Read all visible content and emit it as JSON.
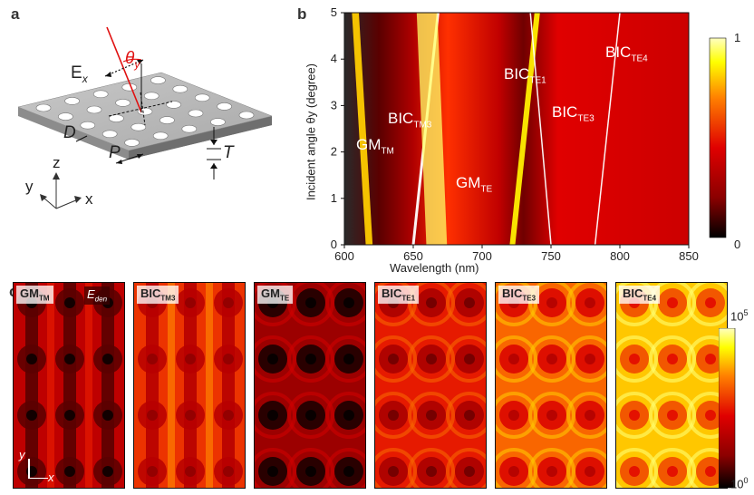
{
  "panel_labels": {
    "a": "a",
    "b": "b",
    "c": "c"
  },
  "schematic": {
    "ex": "E",
    "ex_sub": "x",
    "theta": "θ",
    "theta_sub": "y",
    "d": "D",
    "p": "P",
    "t": "T",
    "axis_z": "z",
    "axis_y": "y",
    "axis_x": "x"
  },
  "chart_data": [
    {
      "type": "heatmap",
      "title": "",
      "xlabel": "Wavelength (nm)",
      "ylabel": "Incident angle θy (degree)",
      "xlim": [
        600,
        850
      ],
      "ylim": [
        0,
        5
      ],
      "xticks": [
        600,
        650,
        700,
        750,
        800,
        850
      ],
      "yticks": [
        0,
        1,
        2,
        3,
        4,
        5
      ],
      "colorbar": {
        "min": "0",
        "max": "1",
        "colors": [
          "#000000",
          "#8b0000",
          "#e00000",
          "#ff8000",
          "#ffff00",
          "#ffffc0"
        ]
      },
      "annotations": [
        {
          "text": "GM",
          "sub": "TM"
        },
        {
          "text": "BIC",
          "sub": "TM3"
        },
        {
          "text": "GM",
          "sub": "TE"
        },
        {
          "text": "BIC",
          "sub": "TE1"
        },
        {
          "text": "BIC",
          "sub": "TE3"
        },
        {
          "text": "BIC",
          "sub": "TE4"
        }
      ],
      "modes": [
        {
          "name": "GMTM",
          "x_at_0": 618,
          "x_at_5": 608,
          "width": 5
        },
        {
          "name": "BICTM3",
          "x_at_0": 650,
          "x_at_5": 668,
          "width": 2
        },
        {
          "name": "GMTE",
          "x_at_0": 667,
          "x_at_5": 660,
          "width": 15
        },
        {
          "name": "BICTE1",
          "x_at_0": 722,
          "x_at_5": 740,
          "width": 4
        },
        {
          "name": "BICTE3",
          "x_at_0": 750,
          "x_at_5": 735,
          "width": 1
        },
        {
          "name": "BICTE4",
          "x_at_0": 782,
          "x_at_5": 800,
          "width": 1
        }
      ]
    },
    {
      "type": "heatmap",
      "title": "",
      "colorbar": {
        "min": "10",
        "min_exp": "0",
        "max": "10",
        "max_exp": "5"
      },
      "legend_field": {
        "text": "E",
        "sub": "den"
      },
      "axis_labels": {
        "y": "y",
        "x": "x"
      },
      "maps": [
        {
          "label": "GM",
          "sub": "TM",
          "level": 0.35,
          "pattern": "stripes"
        },
        {
          "label": "BIC",
          "sub": "TM3",
          "level": 0.55,
          "pattern": "stripes"
        },
        {
          "label": "GM",
          "sub": "TE",
          "level": 0.25,
          "pattern": "rings"
        },
        {
          "label": "BIC",
          "sub": "TE1",
          "level": 0.5,
          "pattern": "rings"
        },
        {
          "label": "BIC",
          "sub": "TE3",
          "level": 0.65,
          "pattern": "rings"
        },
        {
          "label": "BIC",
          "sub": "TE4",
          "level": 0.8,
          "pattern": "rings"
        }
      ]
    }
  ]
}
